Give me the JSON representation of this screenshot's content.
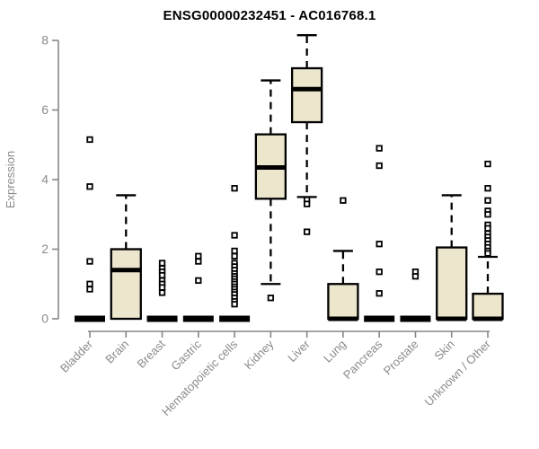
{
  "colors": {
    "box_fill": "#ece6cd",
    "box_border": "#000000",
    "median": "#000000",
    "whisker": "#000000",
    "outlier_fill": "#ffffff",
    "outlier_border": "#000000",
    "axis": "#878787",
    "tick_text": "#8a8a8a",
    "title_text": "#000000",
    "background": "#ffffff"
  },
  "chart_data": {
    "type": "boxplot",
    "title": "ENSG00000232451 - AC016768.1",
    "xlabel": "",
    "ylabel": "Expression",
    "ylim": [
      0,
      8
    ],
    "yticks": [
      0,
      2,
      4,
      6,
      8
    ],
    "grid": "off",
    "legend": "none",
    "categories": [
      "Bladder",
      "Brain",
      "Breast",
      "Gastric",
      "Hematopoietic cells",
      "Kidney",
      "Liver",
      "Lung",
      "Pancreas",
      "Prostate",
      "Skin",
      "Unknown / Other"
    ],
    "series": [
      {
        "label": "Bladder",
        "q1": 0,
        "median": 0,
        "q3": 0,
        "whisker_low": 0,
        "whisker_high": 0,
        "outliers": [
          5.15,
          3.8,
          1.65,
          1.0,
          0.85
        ]
      },
      {
        "label": "Brain",
        "q1": 0,
        "median": 1.4,
        "q3": 2.0,
        "whisker_low": 0,
        "whisker_high": 3.55,
        "outliers": []
      },
      {
        "label": "Breast",
        "q1": 0,
        "median": 0,
        "q3": 0,
        "whisker_low": 0,
        "whisker_high": 0,
        "outliers": [
          1.6,
          1.45,
          1.35,
          1.25,
          1.1,
          1.0,
          0.9,
          0.75
        ]
      },
      {
        "label": "Gastric",
        "q1": 0,
        "median": 0,
        "q3": 0,
        "whisker_low": 0,
        "whisker_high": 0,
        "outliers": [
          1.8,
          1.65,
          1.1
        ]
      },
      {
        "label": "Hematopoietic cells",
        "q1": 0,
        "median": 0,
        "q3": 0,
        "whisker_low": 0,
        "whisker_high": 0,
        "outliers": [
          3.75,
          2.4,
          1.95,
          1.8,
          1.6,
          1.5,
          1.4,
          1.3,
          1.22,
          1.15,
          1.07,
          1.0,
          0.92,
          0.85,
          0.77,
          0.7,
          0.6,
          0.5,
          0.42
        ]
      },
      {
        "label": "Kidney",
        "q1": 3.45,
        "median": 4.35,
        "q3": 5.3,
        "whisker_low": 1.0,
        "whisker_high": 6.85,
        "outliers": [
          0.6
        ]
      },
      {
        "label": "Liver",
        "q1": 5.65,
        "median": 6.6,
        "q3": 7.2,
        "whisker_low": 3.5,
        "whisker_high": 8.15,
        "outliers": [
          3.42,
          3.3,
          2.5
        ]
      },
      {
        "label": "Lung",
        "q1": 0,
        "median": 0,
        "q3": 1.0,
        "whisker_low": 0,
        "whisker_high": 1.95,
        "outliers": [
          3.4
        ]
      },
      {
        "label": "Pancreas",
        "q1": 0,
        "median": 0,
        "q3": 0,
        "whisker_low": 0,
        "whisker_high": 0,
        "outliers": [
          4.9,
          4.4,
          2.15,
          1.35,
          0.73
        ]
      },
      {
        "label": "Prostate",
        "q1": 0,
        "median": 0,
        "q3": 0,
        "whisker_low": 0,
        "whisker_high": 0,
        "outliers": [
          1.35,
          1.22
        ]
      },
      {
        "label": "Skin",
        "q1": 0,
        "median": 0,
        "q3": 2.05,
        "whisker_low": 0,
        "whisker_high": 3.55,
        "outliers": []
      },
      {
        "label": "Unknown / Other",
        "q1": 0,
        "median": 0,
        "q3": 0.72,
        "whisker_low": 0,
        "whisker_high": 1.78,
        "outliers": [
          4.45,
          3.75,
          3.4,
          3.1,
          3.0,
          2.7,
          2.6,
          2.45,
          2.35,
          2.25,
          2.15,
          2.05,
          1.95,
          1.88
        ]
      }
    ]
  }
}
